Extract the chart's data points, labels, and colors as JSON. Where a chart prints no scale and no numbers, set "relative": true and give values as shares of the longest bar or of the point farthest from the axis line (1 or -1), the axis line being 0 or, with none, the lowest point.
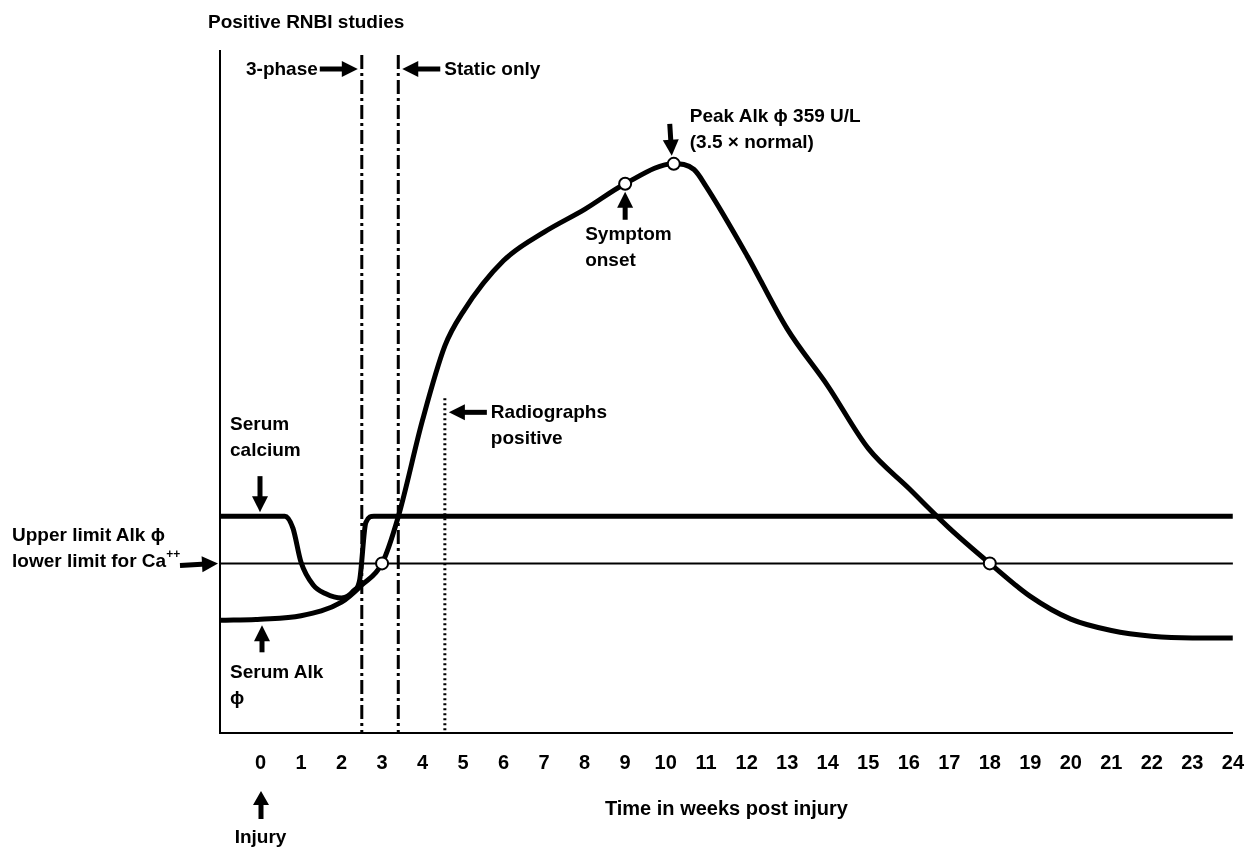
{
  "chart_data": {
    "type": "line",
    "title": "Positive RNBI studies",
    "xlabel": "Time in weeks post injury",
    "relative": true,
    "xlim": [
      -1,
      24
    ],
    "xticks": [
      0,
      1,
      2,
      3,
      4,
      5,
      6,
      7,
      8,
      9,
      10,
      11,
      12,
      13,
      14,
      15,
      16,
      17,
      18,
      19,
      20,
      21,
      22,
      23,
      24
    ],
    "grid": false,
    "legend": false,
    "marker": "none",
    "line_style": "solid",
    "series": [
      {
        "name": "Serum calcium",
        "color": "#000000",
        "x": [
          -1,
          0.6,
          0.8,
          1.0,
          1.3,
          1.6,
          2.0,
          2.3,
          2.45,
          2.6,
          2.8,
          24
        ],
        "values": [
          0.381,
          0.381,
          0.36,
          0.3,
          0.26,
          0.245,
          0.237,
          0.25,
          0.27,
          0.37,
          0.381,
          0.381
        ]
      },
      {
        "name": "Serum Alk ϕ",
        "color": "#000000",
        "x": [
          -1,
          0,
          1,
          2,
          2.5,
          3,
          3.4,
          4,
          4.55,
          5,
          6,
          7,
          8,
          9,
          10.2,
          10.7,
          11,
          12,
          13,
          14,
          15,
          16,
          17,
          18,
          19,
          20,
          21,
          22,
          23,
          24
        ],
        "values": [
          0.198,
          0.2,
          0.206,
          0.23,
          0.26,
          0.298,
          0.38,
          0.55,
          0.68,
          0.74,
          0.83,
          0.88,
          0.92,
          0.965,
          1.0,
          0.99,
          0.96,
          0.84,
          0.71,
          0.61,
          0.5,
          0.43,
          0.36,
          0.298,
          0.24,
          0.2,
          0.18,
          0.17,
          0.167,
          0.167
        ]
      },
      {
        "type": "scatter",
        "color": "#ffffff",
        "marker": "circle",
        "x": [
          3,
          9,
          10.2,
          18
        ],
        "values": [
          0.298,
          0.965,
          1.0,
          0.298
        ]
      }
    ],
    "ref_lines": [
      {
        "axis": "y",
        "value": 0.298,
        "label": "Upper limit Alk ϕ lower limit for Ca$^{++}$",
        "color": "#000000",
        "line_style": "solid"
      },
      {
        "axis": "x",
        "value": 2.5,
        "label": "3-phase",
        "color": "#000000",
        "line_style": "dashed"
      },
      {
        "axis": "x",
        "value": 3.4,
        "label": "Static only",
        "color": "#000000",
        "line_style": "dashed"
      },
      {
        "axis": "x",
        "value": 4.55,
        "label": "Radiographs positive",
        "color": "#000000",
        "line_style": "dotted"
      }
    ],
    "annotations": [
      {
        "text": "Peak Alk ϕ 359 U/L (3.5 × normal)",
        "x": 10.2,
        "y": 1.0
      },
      {
        "text": "Symptom onset",
        "x": 9,
        "y": 0.965
      },
      "Injury"
    ]
  }
}
